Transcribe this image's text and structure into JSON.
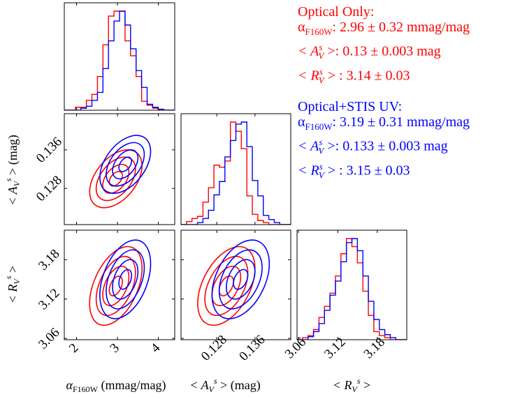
{
  "annotations": {
    "optical": {
      "title": "Optical Only:",
      "alpha_label": "α",
      "alpha_sub": "F160W",
      "alpha_value": ": 2.96 ± 0.32 mmag/mag",
      "av_label": "< A",
      "av_sup": "s",
      "av_sub": "V",
      "av_close": " >: 0.13 ± 0.003 mag",
      "rv_label": "< R",
      "rv_sup": "s",
      "rv_sub": "V",
      "rv_close": " > : 3.14 ± 0.03",
      "color": "#ff0000"
    },
    "stis": {
      "title": "Optical+STIS UV:",
      "alpha_label": "α",
      "alpha_sub": "F160W",
      "alpha_value": ": 3.19 ± 0.31 mmag/mag",
      "av_label": "< A",
      "av_sup": "s",
      "av_sub": "V",
      "av_close": " >: 0.133 ± 0.003 mag",
      "rv_label": "< R",
      "rv_sup": "s",
      "rv_sub": "V",
      "rv_close": " > : 3.15 ± 0.03",
      "color": "#0000ff"
    }
  },
  "chart_data": {
    "type": "corner",
    "parameters": [
      "alpha",
      "av",
      "rv"
    ],
    "axis_labels": {
      "alpha": "αF160W (mmag/mag)",
      "av": "< A_V^s > (mag)",
      "rv": "< R_V^s >"
    },
    "ranges": {
      "alpha": [
        1.7,
        4.4
      ],
      "av": [
        0.1205,
        0.1435
      ],
      "rv": [
        3.058,
        3.225
      ]
    },
    "ticks": {
      "alpha": [
        2,
        3,
        4
      ],
      "av": [
        0.128,
        0.136
      ],
      "rv": [
        3.06,
        3.12,
        3.18
      ]
    },
    "tick_labels": {
      "alpha": [
        "2",
        "3",
        "4"
      ],
      "av": [
        "0.128",
        "0.136"
      ],
      "rv": [
        "3.06",
        "3.12",
        "3.18"
      ]
    },
    "series": [
      {
        "name": "Optical Only",
        "color": "#ff0000",
        "mean": {
          "alpha": 2.96,
          "av": 0.13,
          "rv": 3.14
        },
        "sigma": {
          "alpha": 0.32,
          "av": 0.003,
          "rv": 0.03
        },
        "hist_alpha": [
          0,
          0,
          0.03,
          0.03,
          0.1,
          0.16,
          0.34,
          0.66,
          0.95,
          1.0,
          1.0,
          0.7,
          0.55,
          0.34,
          0.09,
          0.05,
          0.02,
          0,
          0,
          0
        ],
        "hist_av": [
          0,
          0.03,
          0.06,
          0.08,
          0.22,
          0.36,
          0.58,
          0.56,
          0.62,
          1.0,
          0.91,
          0.74,
          0.28,
          0.1,
          0.04,
          0.02,
          0,
          0,
          0,
          0
        ],
        "hist_rv": [
          0,
          0.02,
          0.04,
          0.1,
          0.22,
          0.33,
          0.46,
          0.63,
          0.85,
          1.0,
          0.92,
          0.76,
          0.48,
          0.24,
          0.08,
          0.04,
          0.02,
          0,
          0,
          0
        ]
      },
      {
        "name": "Optical+STIS UV",
        "color": "#0000ff",
        "mean": {
          "alpha": 3.19,
          "av": 0.133,
          "rv": 3.15
        },
        "sigma": {
          "alpha": 0.31,
          "av": 0.003,
          "rv": 0.03
        },
        "hist_alpha": [
          0,
          0,
          0,
          0.02,
          0.04,
          0.1,
          0.18,
          0.42,
          0.7,
          0.9,
          1.0,
          0.86,
          0.62,
          0.4,
          0.23,
          0.06,
          0.03,
          0.01,
          0,
          0
        ],
        "hist_av": [
          0,
          0,
          0,
          0.02,
          0.06,
          0.14,
          0.29,
          0.42,
          0.66,
          0.82,
          0.98,
          1.0,
          0.76,
          0.43,
          0.28,
          0.09,
          0.05,
          0.02,
          0,
          0
        ],
        "hist_rv": [
          0,
          0,
          0.03,
          0.08,
          0.16,
          0.29,
          0.44,
          0.58,
          0.77,
          0.96,
          1.0,
          0.88,
          0.63,
          0.38,
          0.2,
          0.1,
          0.05,
          0.02,
          0,
          0
        ]
      }
    ],
    "correlations": {
      "alpha_av": [
        0.45,
        0.45
      ],
      "alpha_rv": [
        0.45,
        0.4
      ],
      "av_rv": [
        0.45,
        0.4
      ]
    },
    "contour_levels_sigma": [
      0.5,
      1.0,
      1.5,
      2.0
    ]
  }
}
